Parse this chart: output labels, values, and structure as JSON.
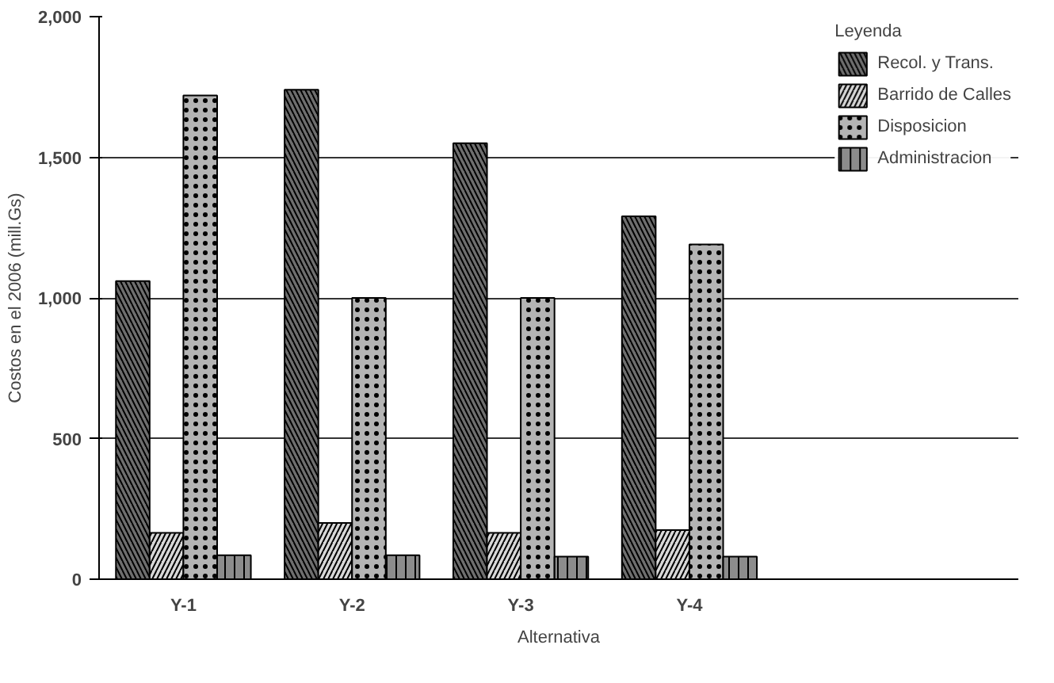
{
  "chart_data": {
    "type": "bar",
    "xlabel": "Alternativa",
    "ylabel": "Costos en el 2006 (mill.Gs)",
    "legend_title": "Leyenda",
    "categories": [
      "Y-1",
      "Y-2",
      "Y-3",
      "Y-4"
    ],
    "series": [
      {
        "name": "Recol. y Trans.",
        "color": "#6e6e6e",
        "values": [
          1060,
          1740,
          1550,
          1290
        ]
      },
      {
        "name": "Barrido de Calles",
        "color": "#d8d8d8",
        "values": [
          165,
          200,
          165,
          175
        ]
      },
      {
        "name": "Disposicion",
        "color": "#b4b4b4",
        "values": [
          1720,
          1000,
          1000,
          1190
        ]
      },
      {
        "name": "Administracion",
        "color": "#8c8c8c",
        "values": [
          85,
          85,
          80,
          80
        ]
      }
    ],
    "ylim": [
      0,
      2000
    ],
    "yticks": [
      {
        "value": 0,
        "label": "0"
      },
      {
        "value": 500,
        "label": "500"
      },
      {
        "value": 1000,
        "label": "1,000"
      },
      {
        "value": 1500,
        "label": "1,500"
      },
      {
        "value": 2000,
        "label": "2,000"
      }
    ],
    "grid": "y",
    "legend": "top right"
  }
}
